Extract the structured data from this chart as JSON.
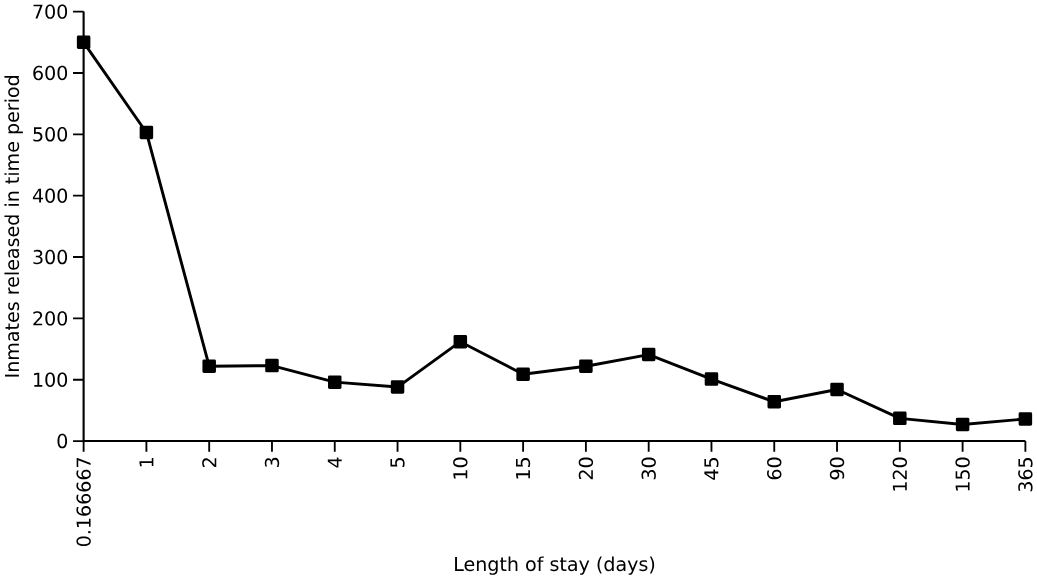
{
  "chart_data": {
    "type": "line",
    "xlabel": "Length of stay (days)",
    "ylabel": "Inmates released in time period",
    "categories": [
      "0.166667",
      "1",
      "2",
      "3",
      "4",
      "5",
      "10",
      "15",
      "20",
      "30",
      "45",
      "60",
      "90",
      "120",
      "150",
      "365"
    ],
    "values": [
      650,
      503,
      122,
      123,
      96,
      88,
      162,
      109,
      122,
      141,
      101,
      64,
      84,
      37,
      27,
      36
    ],
    "color": "#000000",
    "marker": "square",
    "line_style": "solid",
    "grid": false,
    "ylim": [
      0,
      700
    ],
    "yticks": [
      0,
      100,
      200,
      300,
      400,
      500,
      600,
      700
    ]
  }
}
